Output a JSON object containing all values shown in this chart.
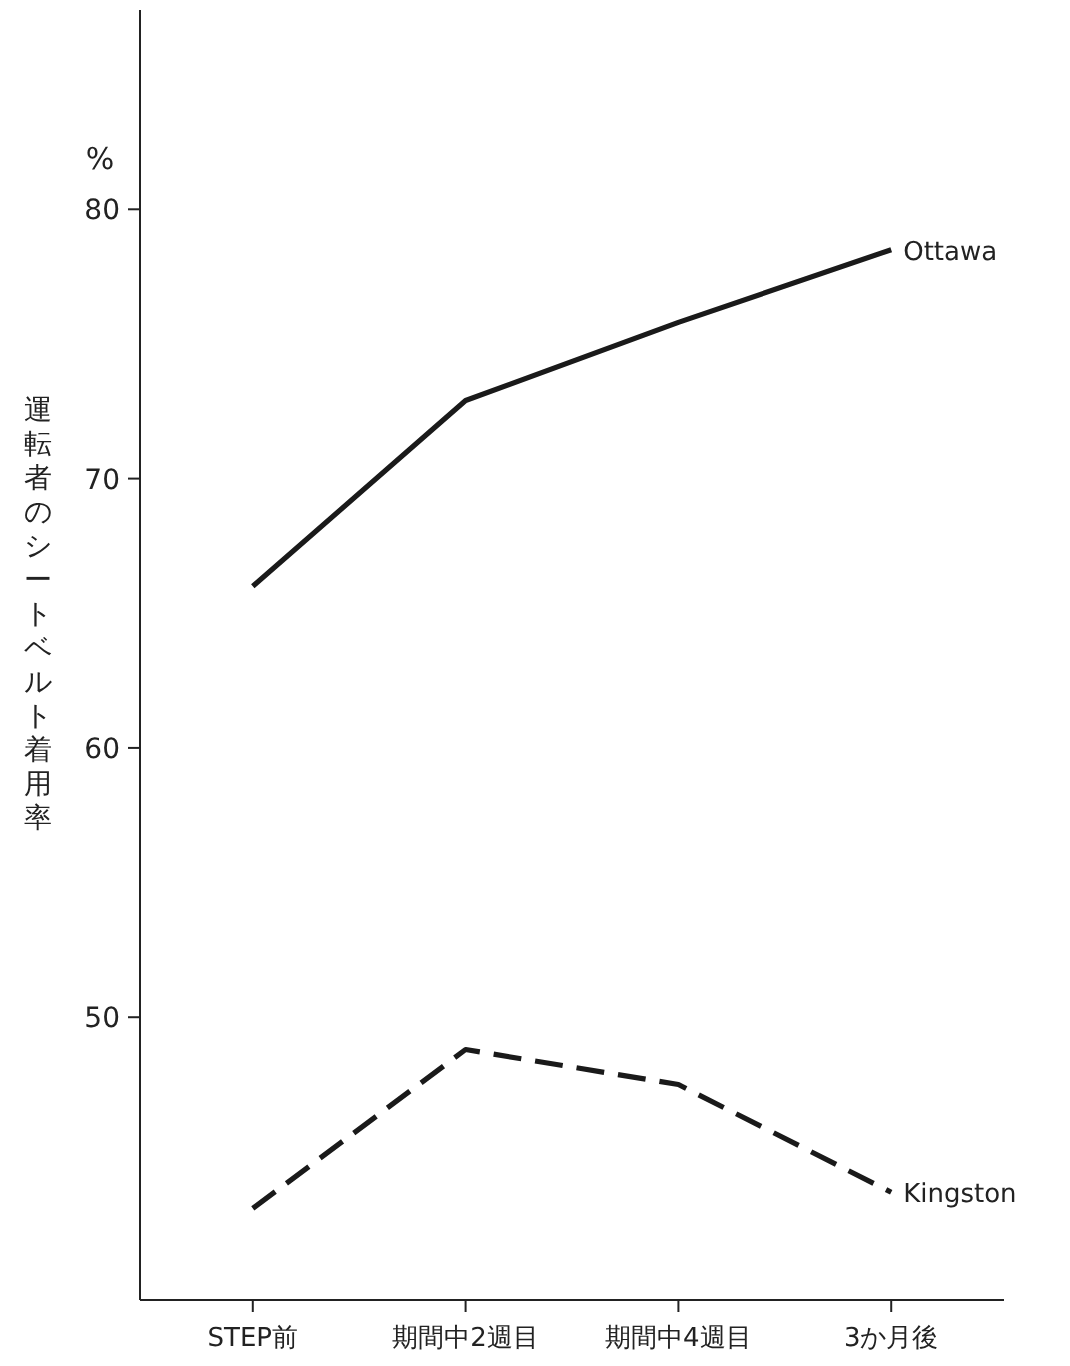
{
  "chart_data": {
    "type": "line",
    "ylabel": "運転者のシートベルト着用率",
    "annotations": [
      "%"
    ],
    "categories": [
      "STEP前",
      "期間中2週目",
      "期間中4週目",
      "3か月後"
    ],
    "series": [
      {
        "name": "Ottawa",
        "color": "#1a1a1a",
        "line_style": "solid",
        "values": [
          66.0,
          72.9,
          75.8,
          78.5
        ]
      },
      {
        "name": "Kingston",
        "color": "#1a1a1a",
        "line_style": "dashed",
        "values": [
          42.9,
          48.8,
          47.5,
          43.5
        ]
      }
    ],
    "ylim": [
      39.5,
      87.4
    ],
    "yticks": [
      50,
      60,
      70,
      80
    ],
    "grid": false,
    "marker": "none"
  }
}
